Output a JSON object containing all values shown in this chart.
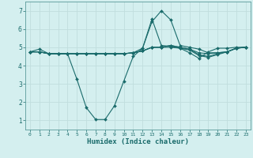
{
  "xlabel": "Humidex (Indice chaleur)",
  "bg_color": "#d4efef",
  "grid_color": "#c0dede",
  "line_color": "#1a6b6b",
  "spine_color": "#5a9a9a",
  "xlim": [
    -0.5,
    23.5
  ],
  "ylim": [
    0.5,
    7.5
  ],
  "yticks": [
    1,
    2,
    3,
    4,
    5,
    6,
    7
  ],
  "xticks": [
    0,
    1,
    2,
    3,
    4,
    5,
    6,
    7,
    8,
    9,
    10,
    11,
    12,
    13,
    14,
    15,
    16,
    17,
    18,
    19,
    20,
    21,
    22,
    23
  ],
  "series": [
    [
      4.75,
      4.9,
      4.65,
      4.65,
      4.65,
      3.25,
      1.7,
      1.05,
      1.05,
      1.8,
      3.15,
      4.5,
      4.95,
      6.55,
      5.1,
      5.05,
      4.95,
      4.7,
      4.4,
      4.75,
      4.95,
      4.95,
      5.0,
      5.0
    ],
    [
      4.75,
      4.75,
      4.65,
      4.65,
      4.65,
      4.65,
      4.65,
      4.65,
      4.65,
      4.65,
      4.65,
      4.7,
      4.95,
      6.4,
      7.0,
      6.5,
      5.1,
      5.0,
      4.9,
      4.7,
      4.7,
      4.75,
      4.95,
      5.0
    ],
    [
      4.75,
      4.75,
      4.65,
      4.65,
      4.65,
      4.65,
      4.65,
      4.65,
      4.65,
      4.65,
      4.65,
      4.7,
      4.8,
      5.0,
      5.0,
      5.1,
      5.0,
      4.9,
      4.7,
      4.65,
      4.7,
      4.75,
      4.95,
      5.0
    ],
    [
      4.75,
      4.75,
      4.65,
      4.65,
      4.65,
      4.65,
      4.65,
      4.65,
      4.65,
      4.65,
      4.65,
      4.7,
      4.8,
      5.0,
      5.0,
      5.1,
      5.0,
      4.9,
      4.6,
      4.5,
      4.65,
      4.75,
      4.95,
      5.0
    ],
    [
      4.75,
      4.75,
      4.65,
      4.65,
      4.65,
      4.65,
      4.65,
      4.65,
      4.65,
      4.65,
      4.65,
      4.7,
      4.8,
      5.0,
      5.0,
      5.0,
      4.95,
      4.85,
      4.55,
      4.45,
      4.6,
      4.75,
      4.95,
      5.0
    ]
  ],
  "lw": 0.8,
  "marker_style": "D",
  "marker_size": 2.0
}
